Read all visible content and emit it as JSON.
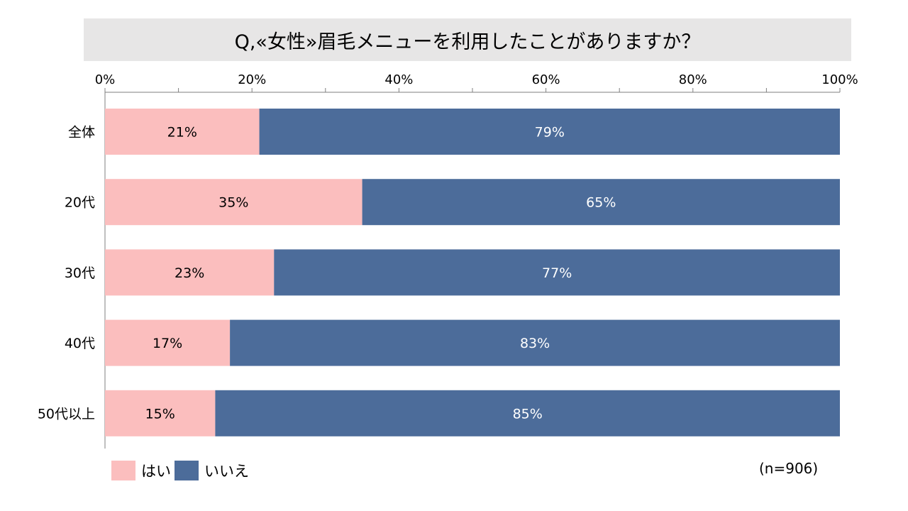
{
  "chart_data": {
    "type": "bar",
    "orientation": "horizontal",
    "stacked": true,
    "title": "Q,«女性»眉毛メニューを利用したことがありますか？",
    "categories": [
      "全体",
      "20代",
      "30代",
      "40代",
      "50代以上"
    ],
    "series": [
      {
        "name": "はい",
        "color": "#fbbebe",
        "values": [
          21,
          35,
          23,
          17,
          15
        ],
        "labels": [
          "21%",
          "35%",
          "23%",
          "17%",
          "15%"
        ]
      },
      {
        "name": "いいえ",
        "color": "#4c6c9a",
        "values": [
          79,
          65,
          77,
          83,
          85
        ],
        "labels": [
          "79%",
          "65%",
          "77%",
          "83%",
          "85%"
        ]
      }
    ],
    "xlim": [
      0,
      100
    ],
    "xticks": [
      0,
      20,
      40,
      60,
      80,
      100
    ],
    "xtick_labels": [
      "0%",
      "20%",
      "40%",
      "60%",
      "80%",
      "100%"
    ],
    "legend_position": "bottom-left",
    "note": "(n=906)"
  }
}
